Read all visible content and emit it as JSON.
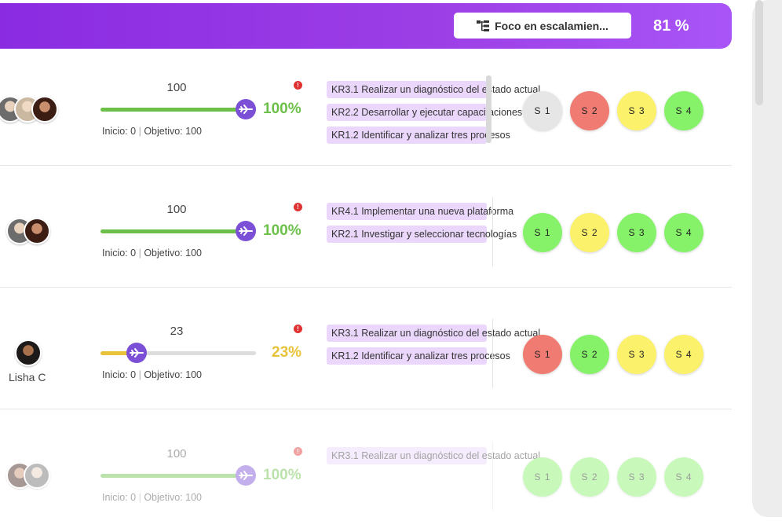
{
  "header": {
    "focus_label": "Foco en escalamien...",
    "focus_icon": "hierarchy-icon",
    "percent": "81 %"
  },
  "colors": {
    "green": "#6cc04a",
    "yellow": "#e8c33a",
    "knob": "#7b4fd6",
    "stage_gray": "#e6e6e6",
    "stage_red": "#ef7b72",
    "stage_yellow": "#fcf16a",
    "stage_green": "#86f26a"
  },
  "rows": [
    {
      "value": "100",
      "progress": 1.0,
      "percent": "100%",
      "range_start": "Inicio: 0",
      "range_sep": "|",
      "range_target": "Objetivo: 100",
      "krs": [
        "KR3.1 Realizar un diagnóstico del estado actual",
        "KR2.2 Desarrollar y ejecutar capacitaciones",
        "KR1.2 Identificar y analizar tres procesos"
      ],
      "stages": [
        {
          "label": "S 1",
          "status": "gray"
        },
        {
          "label": "S 2",
          "status": "red"
        },
        {
          "label": "S 3",
          "status": "yellow"
        },
        {
          "label": "S 4",
          "status": "green"
        }
      ]
    },
    {
      "value": "100",
      "progress": 1.0,
      "percent": "100%",
      "range_start": "Inicio: 0",
      "range_sep": "|",
      "range_target": "Objetivo: 100",
      "krs": [
        "KR4.1 Implementar una nueva plataforma",
        "KR2.1 Investigar y seleccionar tecnologías"
      ],
      "stages": [
        {
          "label": "S 1",
          "status": "green"
        },
        {
          "label": "S 2",
          "status": "yellow"
        },
        {
          "label": "S 3",
          "status": "green"
        },
        {
          "label": "S 4",
          "status": "green"
        }
      ]
    },
    {
      "avatar_name": "Lisha C",
      "value": "23",
      "progress": 0.23,
      "percent": "23%",
      "range_start": "Inicio: 0",
      "range_sep": "|",
      "range_target": "Objetivo: 100",
      "krs": [
        "KR3.1 Realizar un diagnóstico del estado actual",
        "KR1.2 Identificar y analizar tres procesos"
      ],
      "stages": [
        {
          "label": "S 1",
          "status": "red"
        },
        {
          "label": "S 2",
          "status": "green"
        },
        {
          "label": "S 3",
          "status": "yellow"
        },
        {
          "label": "S 4",
          "status": "yellow"
        }
      ]
    },
    {
      "value": "100",
      "progress": 1.0,
      "percent": "100%",
      "range_start": "Inicio: 0",
      "range_sep": "|",
      "range_target": "Objetivo: 100",
      "krs": [
        "KR3.1 Realizar un diagnóstico del estado actual"
      ],
      "stages": [
        {
          "label": "S 1",
          "status": "green"
        },
        {
          "label": "S 2",
          "status": "green"
        },
        {
          "label": "S 3",
          "status": "green"
        },
        {
          "label": "S 4",
          "status": "green"
        }
      ]
    }
  ]
}
